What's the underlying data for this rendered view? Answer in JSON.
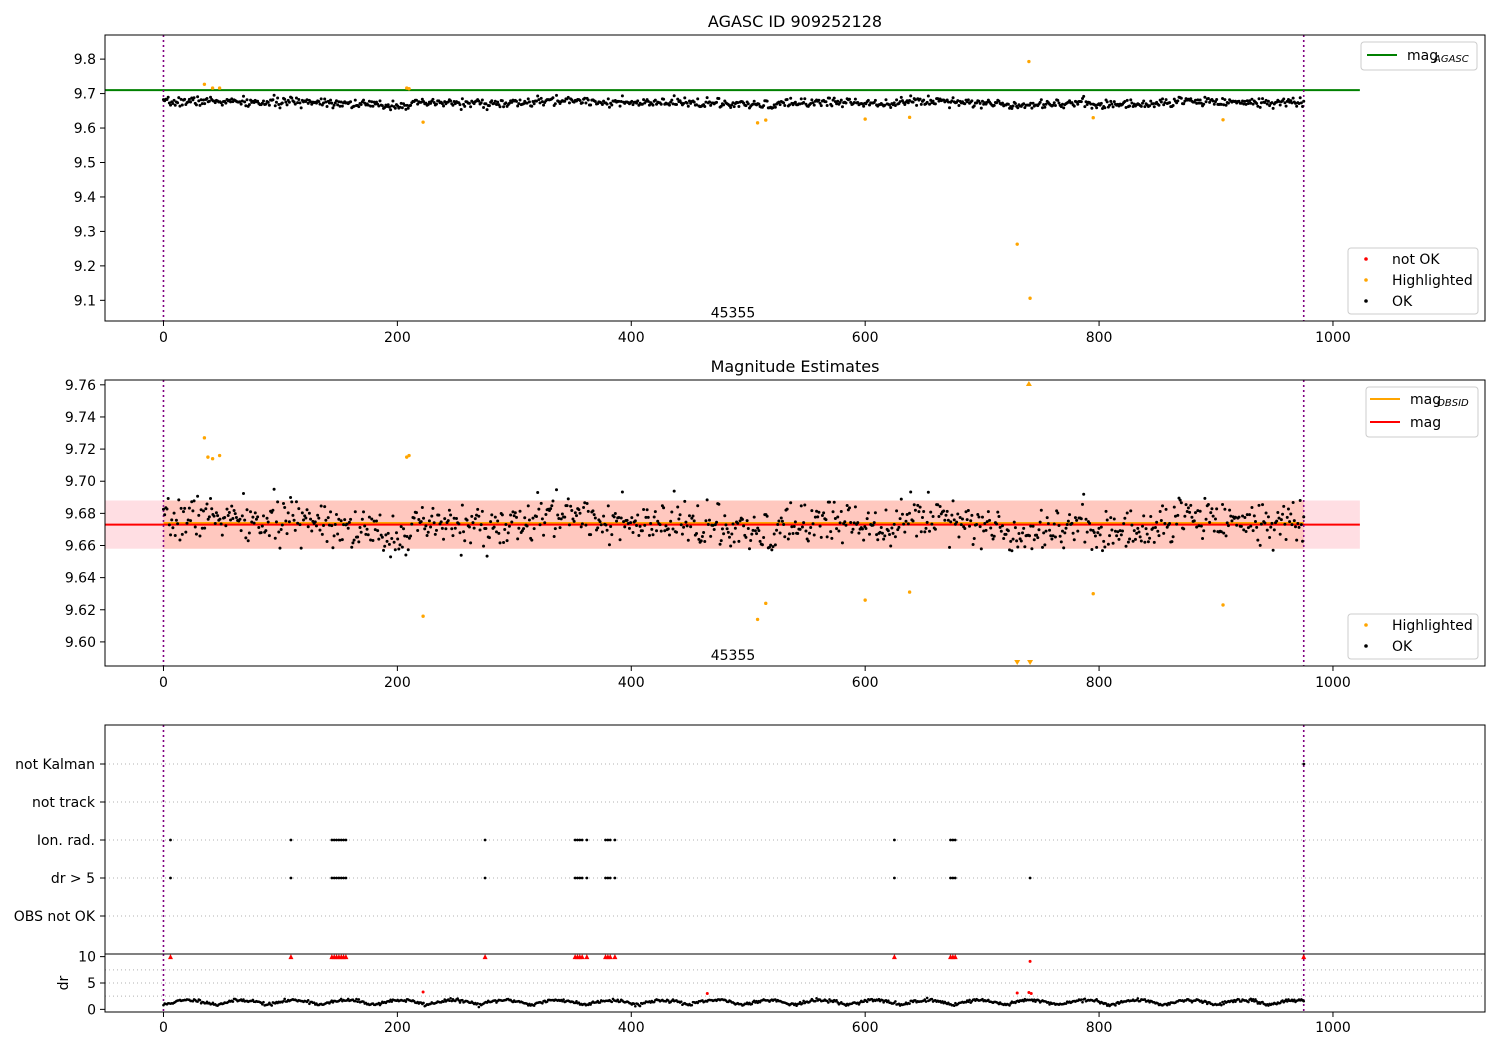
{
  "figure": {
    "title": "AGASC ID 909252128"
  },
  "chart_data": [
    {
      "type": "scatter",
      "title": "AGASC ID 909252128",
      "xlabel": "",
      "ylabel": "",
      "xlim": [
        -50,
        1130
      ],
      "ylim": [
        9.04,
        9.87
      ],
      "xticks": [
        0,
        200,
        400,
        600,
        800,
        1000
      ],
      "yticks": [
        9.1,
        9.2,
        9.3,
        9.4,
        9.5,
        9.6,
        9.7,
        9.8
      ],
      "obsid_boundaries": [
        0,
        975
      ],
      "annotation": {
        "text": "45355",
        "x": 487,
        "y": 9.065
      },
      "reference_lines": [
        {
          "name": "mag_AGASC",
          "label_main": "mag",
          "label_sub": "AGASC",
          "y": 9.71,
          "x": [
            -50,
            1023
          ],
          "color": "#008000"
        }
      ],
      "series": [
        {
          "name": "not OK",
          "color": "#ff0000",
          "points": []
        },
        {
          "name": "Highlighted",
          "color": "#ffa500",
          "points": [
            [
              35,
              9.727
            ],
            [
              42,
              9.716
            ],
            [
              48,
              9.716
            ],
            [
              208,
              9.716
            ],
            [
              210,
              9.714
            ],
            [
              222,
              9.617
            ],
            [
              508,
              9.615
            ],
            [
              515,
              9.623
            ],
            [
              600,
              9.626
            ],
            [
              638,
              9.631
            ],
            [
              730,
              9.263
            ],
            [
              740,
              9.793
            ],
            [
              741,
              9.106
            ],
            [
              795,
              9.63
            ],
            [
              906,
              9.624
            ]
          ]
        },
        {
          "name": "OK",
          "color": "#000000",
          "generated": true,
          "n": 970,
          "x_range": [
            0,
            975
          ],
          "y_center": 9.673,
          "y_noise": 0.011,
          "seed": 7
        }
      ],
      "legends": [
        {
          "position": "top-right",
          "entries": [
            "mag_AGASC"
          ]
        },
        {
          "position": "bottom-right",
          "entries": [
            "not OK",
            "Highlighted",
            "OK"
          ]
        }
      ]
    },
    {
      "type": "scatter",
      "title": "Magnitude Estimates",
      "xlabel": "",
      "ylabel": "",
      "xlim": [
        -50,
        1130
      ],
      "ylim": [
        9.585,
        9.763
      ],
      "xticks": [
        0,
        200,
        400,
        600,
        800,
        1000
      ],
      "yticks": [
        9.6,
        9.62,
        9.64,
        9.66,
        9.68,
        9.7,
        9.72,
        9.74,
        9.76
      ],
      "obsid_boundaries": [
        0,
        975
      ],
      "annotation": {
        "text": "45355",
        "x": 487,
        "y": 9.592
      },
      "bands": [
        {
          "name": "mag band",
          "y": [
            9.658,
            9.688
          ],
          "x": [
            -50,
            1023
          ],
          "color": "#ffb6c1",
          "opacity": 0.45
        },
        {
          "name": "mag_OBSID band",
          "y": [
            9.658,
            9.688
          ],
          "x": [
            0,
            975
          ],
          "color": "#ffa07a",
          "opacity": 0.35
        }
      ],
      "reference_lines": [
        {
          "name": "mag_OBSID",
          "label_main": "mag",
          "label_sub": "OBSID",
          "y": 9.674,
          "x": [
            0,
            975
          ],
          "color": "#ffa500"
        },
        {
          "name": "mag",
          "label_main": "mag",
          "label_sub": "",
          "y": 9.673,
          "x": [
            -50,
            1023
          ],
          "color": "#ff0000"
        }
      ],
      "series": [
        {
          "name": "Highlighted",
          "color": "#ffa500",
          "points": [
            [
              35,
              9.727
            ],
            [
              38,
              9.715
            ],
            [
              42,
              9.714
            ],
            [
              48,
              9.716
            ],
            [
              208,
              9.715
            ],
            [
              210,
              9.716
            ],
            [
              222,
              9.616
            ],
            [
              508,
              9.614
            ],
            [
              515,
              9.624
            ],
            [
              600,
              9.626
            ],
            [
              638,
              9.631
            ],
            [
              795,
              9.63
            ],
            [
              906,
              9.623
            ]
          ]
        },
        {
          "name": "OK",
          "color": "#000000",
          "generated": true,
          "n": 970,
          "x_range": [
            0,
            975
          ],
          "y_center": 9.673,
          "y_noise": 0.011,
          "seed": 7
        }
      ],
      "out_of_range_markers": [
        {
          "x": 740,
          "side": "top",
          "color": "#ffa500"
        },
        {
          "x": 730,
          "side": "bottom",
          "color": "#ffa500"
        },
        {
          "x": 741,
          "side": "bottom",
          "color": "#ffa500"
        }
      ],
      "legends": [
        {
          "position": "top-right",
          "entries": [
            "mag_OBSID",
            "mag"
          ]
        },
        {
          "position": "bottom-right",
          "entries": [
            "Highlighted",
            "OK"
          ]
        }
      ]
    },
    {
      "type": "scatter",
      "title": "",
      "xlabel": "",
      "ylabel": "",
      "xlim": [
        -50,
        1130
      ],
      "xticks": [
        0,
        200,
        400,
        600,
        800,
        1000
      ],
      "obsid_boundaries": [
        0,
        975
      ],
      "flag_rows": [
        "not Kalman",
        "not track",
        "Ion. rad.",
        "dr > 5",
        "OBS not OK"
      ],
      "flag_points": [
        {
          "row": "not Kalman",
          "x": [
            975
          ]
        },
        {
          "row": "Ion. rad.",
          "x": [
            6,
            109,
            144,
            146,
            148,
            150,
            152,
            154,
            156,
            275,
            352,
            354,
            356,
            358,
            362,
            378,
            380,
            382,
            386,
            625,
            673,
            675,
            677
          ]
        },
        {
          "row": "dr > 5",
          "x": [
            6,
            109,
            144,
            146,
            148,
            150,
            152,
            154,
            156,
            275,
            352,
            354,
            356,
            358,
            362,
            378,
            380,
            382,
            386,
            625,
            673,
            675,
            677,
            741
          ]
        }
      ],
      "dr_panel": {
        "ylabel": "dr",
        "ylim": [
          -0.5,
          10.5
        ],
        "yticks": [
          0,
          5,
          10
        ],
        "clipped_points": [
          {
            "x": [
              6,
              109,
              144,
              146,
              148,
              150,
              152,
              154,
              156,
              275,
              352,
              354,
              356,
              358,
              362,
              378,
              380,
              382,
              386,
              625,
              673,
              675,
              677,
              975
            ],
            "y": 10,
            "color": "#ff0000",
            "marker": "triangle"
          }
        ],
        "red_points": [
          [
            222,
            3.3
          ],
          [
            465,
            3.0
          ],
          [
            730,
            3.1
          ],
          [
            740,
            3.2
          ],
          [
            742,
            3.0
          ],
          [
            741,
            9.1
          ]
        ],
        "ok_points": {
          "generated": true,
          "n": 970,
          "x_range": [
            0,
            975
          ],
          "y_center": 1.2,
          "y_amplitude": 0.9,
          "color": "#000000"
        }
      }
    }
  ]
}
